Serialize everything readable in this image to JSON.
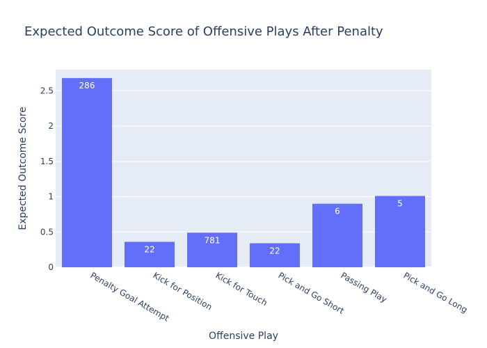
{
  "chart_data": {
    "type": "bar",
    "title": "Expected Outcome Score of Offensive Plays After Penalty",
    "xlabel": "Offensive Play",
    "ylabel": "Expected Outcome Score",
    "categories": [
      "Penalty Goal Attempt",
      "Kick for Position",
      "Kick for Touch",
      "Pick and Go Short",
      "Passing Play",
      "Pick and Go Long"
    ],
    "values": [
      2.68,
      0.36,
      0.49,
      0.34,
      0.9,
      1.01
    ],
    "bar_labels": [
      "286",
      "22",
      "781",
      "22",
      "6",
      "5"
    ],
    "ylim": [
      0,
      2.8
    ],
    "yticks": [
      0,
      0.5,
      1,
      1.5,
      2,
      2.5
    ],
    "ytick_labels": [
      "0",
      "0.5",
      "1",
      "1.5",
      "2",
      "2.5"
    ],
    "grid": true,
    "colors": {
      "bar": "#636efa",
      "plot_bg": "#e5ecf6",
      "grid": "#ffffff",
      "text": "#2a3f5f"
    }
  }
}
